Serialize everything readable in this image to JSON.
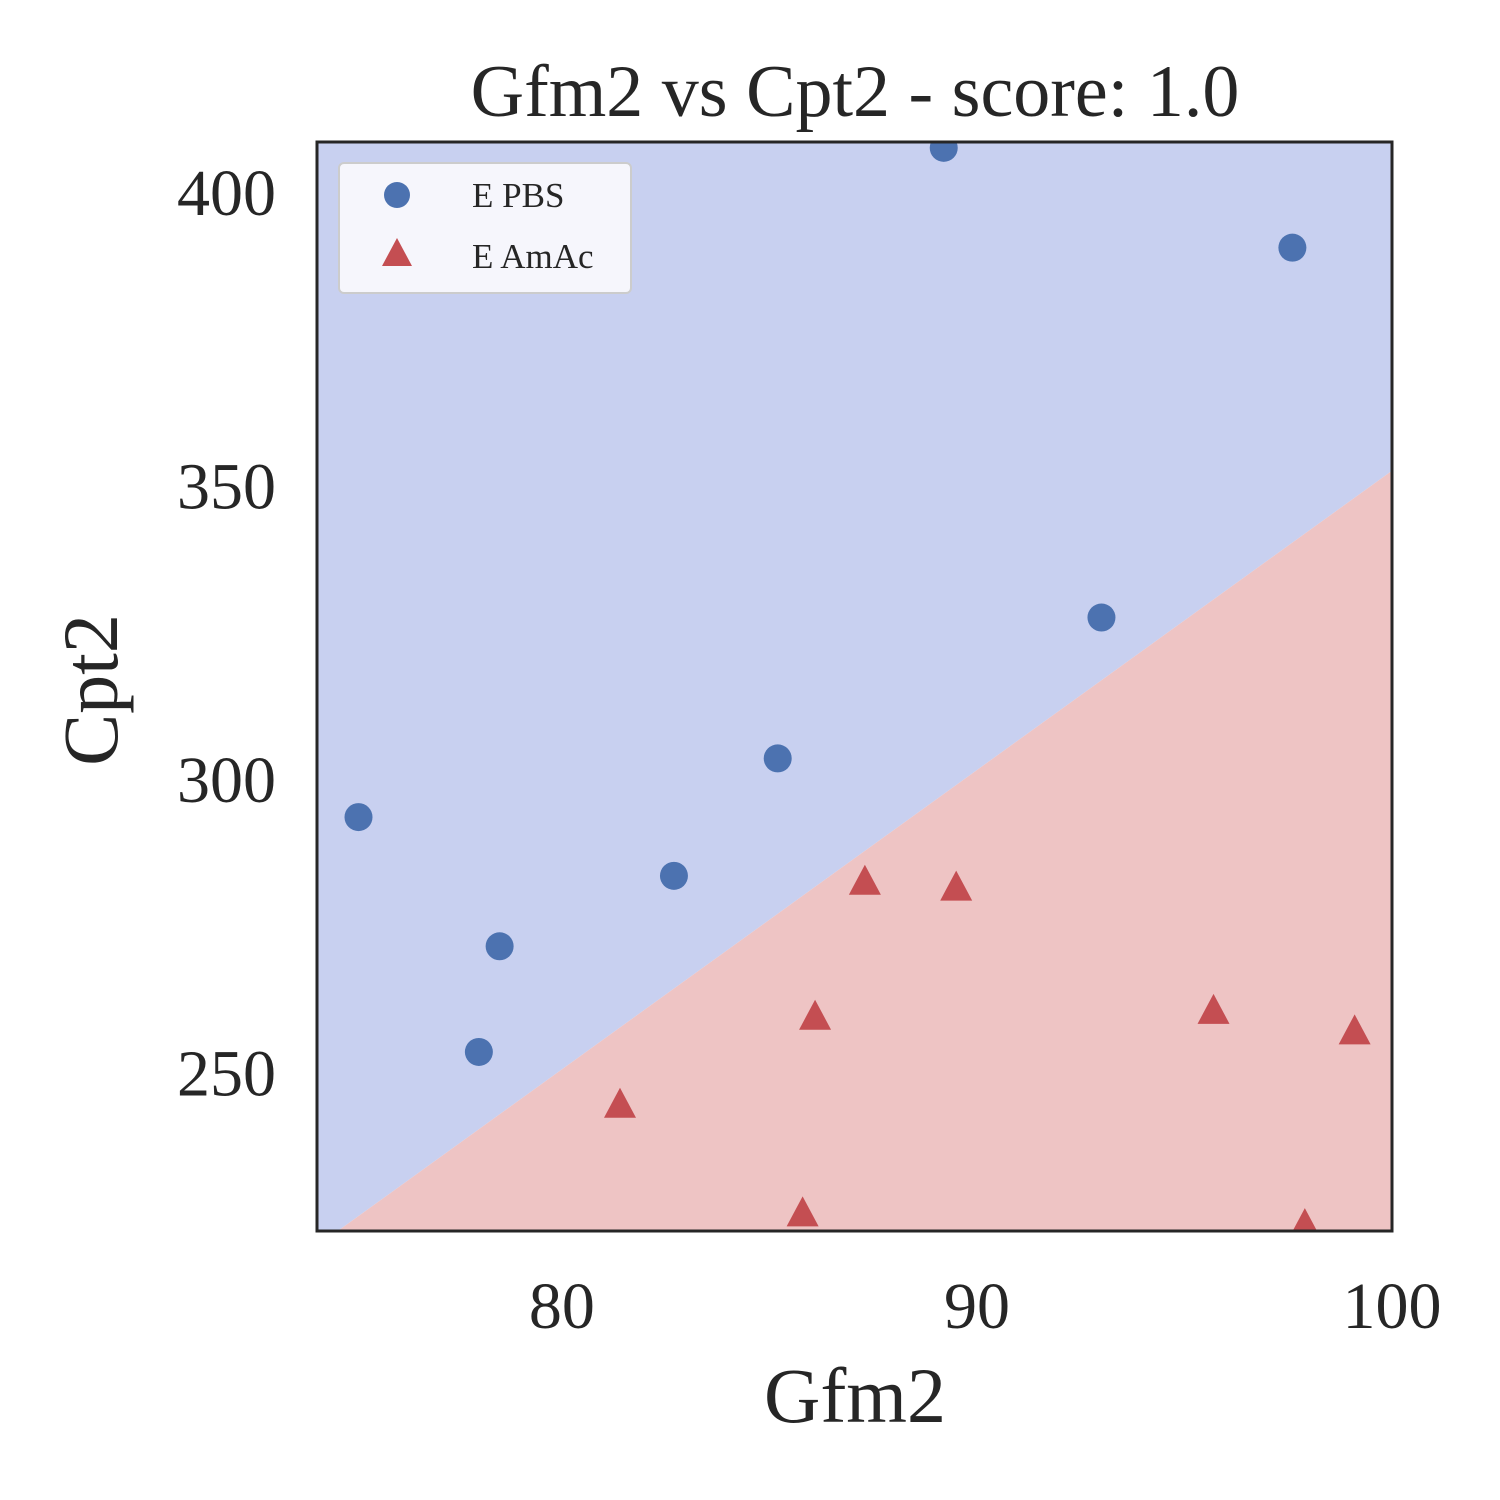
{
  "chart_data": {
    "type": "scatter",
    "title": "Gfm2 vs Cpt2 - score: 1.0",
    "xlabel": "Gfm2",
    "ylabel": "Cpt2",
    "xlim": [
      74.1,
      100.0
    ],
    "ylim": [
      223.0,
      408.5
    ],
    "xticks": [
      80,
      90,
      100
    ],
    "yticks": [
      250,
      300,
      350,
      400
    ],
    "xtick_labels": [
      "80",
      "90",
      "100"
    ],
    "ytick_labels": [
      "250",
      "300",
      "350",
      "400"
    ],
    "grid": false,
    "legend_position": "top-left",
    "regions": {
      "boundary_line": [
        [
          74.6,
          223.0
        ],
        [
          100.0,
          352.5
        ]
      ],
      "upper_color": "#c8d0f0",
      "lower_color": "#eec4c4"
    },
    "series": [
      {
        "name": "E PBS",
        "marker": "circle",
        "color": "#4c72b0",
        "points": [
          [
            75.1,
            293.5
          ],
          [
            78.0,
            253.5
          ],
          [
            78.5,
            271.5
          ],
          [
            82.7,
            283.5
          ],
          [
            85.2,
            303.5
          ],
          [
            89.2,
            407.5
          ],
          [
            93.0,
            327.5
          ],
          [
            97.6,
            390.5
          ]
        ]
      },
      {
        "name": "E AmAc",
        "marker": "triangle",
        "color": "#c44e52",
        "points": [
          [
            81.4,
            244.5
          ],
          [
            85.8,
            226.0
          ],
          [
            86.1,
            259.5
          ],
          [
            87.3,
            282.5
          ],
          [
            89.5,
            281.5
          ],
          [
            95.7,
            260.5
          ],
          [
            97.9,
            224.0
          ],
          [
            99.1,
            257.0
          ]
        ]
      }
    ]
  }
}
